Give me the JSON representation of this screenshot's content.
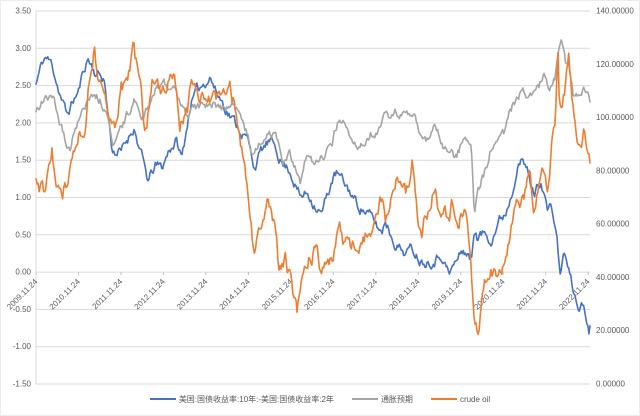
{
  "chart_data": {
    "type": "line",
    "title": "",
    "grid": true,
    "legend_position": "bottom",
    "x_axis": {
      "labels": [
        "2009.11.24",
        "2010.11.24",
        "2011.11.24",
        "2012.11.24",
        "2013.11.24",
        "2014.11.24",
        "2015.11.24",
        "2016.11.24",
        "2017.11.24",
        "2018.11.24",
        "2019.11.24",
        "2020.11.24",
        "2021.11.24",
        "2022.11.24"
      ],
      "rotation": -45,
      "start_year_fraction": 2009.897,
      "end_year_fraction": 2022.94
    },
    "left_axis": {
      "min": -1.5,
      "max": 3.5,
      "step": 0.5,
      "tick_labels": [
        "3.50",
        "3.00",
        "2.50",
        "2.00",
        "1.50",
        "1.00",
        "0.50",
        "0.00",
        "-0.50",
        "-1.00",
        "-1.50"
      ]
    },
    "right_axis": {
      "min": 0,
      "max": 140,
      "step": 20,
      "tick_labels": [
        "140.00000",
        "120.00000",
        "100.00000",
        "80.00000",
        "60.00000",
        "40.00000",
        "20.00000",
        "0.00000"
      ]
    },
    "colors": {
      "series_blue": "#4472C4",
      "series_gray": "#A5A5A5",
      "series_orange": "#ED7D31",
      "gridline": "#D9D9D9",
      "axis_text": "#595959"
    },
    "series": [
      {
        "name": "美国:国债收益率:10年:-美国:国债收益率:2年",
        "axis": "left",
        "color": "#4472C4",
        "jitter": 0.12,
        "points": [
          [
            2009.9,
            2.52
          ],
          [
            2010.04,
            2.8
          ],
          [
            2010.12,
            2.88
          ],
          [
            2010.28,
            2.78
          ],
          [
            2010.45,
            2.42
          ],
          [
            2010.62,
            2.1
          ],
          [
            2010.79,
            2.32
          ],
          [
            2010.9,
            2.42
          ],
          [
            2011.04,
            2.75
          ],
          [
            2011.12,
            2.87
          ],
          [
            2011.29,
            2.68
          ],
          [
            2011.5,
            2.6
          ],
          [
            2011.62,
            1.98
          ],
          [
            2011.7,
            1.63
          ],
          [
            2011.9,
            1.6
          ],
          [
            2012.04,
            1.77
          ],
          [
            2012.2,
            1.96
          ],
          [
            2012.37,
            1.58
          ],
          [
            2012.54,
            1.2
          ],
          [
            2012.7,
            1.42
          ],
          [
            2012.87,
            1.4
          ],
          [
            2013.04,
            1.66
          ],
          [
            2013.2,
            1.76
          ],
          [
            2013.33,
            1.52
          ],
          [
            2013.54,
            2.28
          ],
          [
            2013.7,
            2.42
          ],
          [
            2013.9,
            2.58
          ],
          [
            2014.0,
            2.64
          ],
          [
            2014.12,
            2.44
          ],
          [
            2014.29,
            2.28
          ],
          [
            2014.54,
            2.04
          ],
          [
            2014.7,
            1.92
          ],
          [
            2014.87,
            1.78
          ],
          [
            2015.04,
            1.42
          ],
          [
            2015.2,
            1.62
          ],
          [
            2015.37,
            1.73
          ],
          [
            2015.54,
            1.68
          ],
          [
            2015.7,
            1.46
          ],
          [
            2015.87,
            1.38
          ],
          [
            2015.98,
            1.22
          ],
          [
            2016.12,
            1.0
          ],
          [
            2016.29,
            1.06
          ],
          [
            2016.54,
            0.86
          ],
          [
            2016.62,
            0.78
          ],
          [
            2016.7,
            0.92
          ],
          [
            2016.87,
            1.24
          ],
          [
            2016.98,
            1.32
          ],
          [
            2017.12,
            1.2
          ],
          [
            2017.29,
            1.08
          ],
          [
            2017.45,
            0.92
          ],
          [
            2017.7,
            0.8
          ],
          [
            2017.9,
            0.63
          ],
          [
            2018.04,
            0.52
          ],
          [
            2018.12,
            0.72
          ],
          [
            2018.29,
            0.46
          ],
          [
            2018.54,
            0.28
          ],
          [
            2018.79,
            0.3
          ],
          [
            2018.98,
            0.16
          ],
          [
            2019.12,
            0.17
          ],
          [
            2019.29,
            0.19
          ],
          [
            2019.45,
            0.26
          ],
          [
            2019.62,
            -0.03
          ],
          [
            2019.79,
            0.14
          ],
          [
            2019.95,
            0.3
          ],
          [
            2020.04,
            0.26
          ],
          [
            2020.15,
            0.14
          ],
          [
            2020.22,
            0.62
          ],
          [
            2020.29,
            0.46
          ],
          [
            2020.45,
            0.52
          ],
          [
            2020.62,
            0.47
          ],
          [
            2020.79,
            0.68
          ],
          [
            2020.95,
            0.8
          ],
          [
            2021.12,
            1.12
          ],
          [
            2021.24,
            1.55
          ],
          [
            2021.33,
            1.5
          ],
          [
            2021.45,
            1.38
          ],
          [
            2021.54,
            1.18
          ],
          [
            2021.62,
            1.05
          ],
          [
            2021.79,
            1.25
          ],
          [
            2021.95,
            0.82
          ],
          [
            2022.04,
            0.85
          ],
          [
            2022.12,
            0.62
          ],
          [
            2022.2,
            0.22
          ],
          [
            2022.25,
            -0.06
          ],
          [
            2022.33,
            0.3
          ],
          [
            2022.42,
            0.06
          ],
          [
            2022.54,
            -0.24
          ],
          [
            2022.62,
            -0.41
          ],
          [
            2022.7,
            -0.46
          ],
          [
            2022.79,
            -0.44
          ],
          [
            2022.87,
            -0.68
          ],
          [
            2022.92,
            -0.8
          ],
          [
            2022.94,
            -0.72
          ]
        ]
      },
      {
        "name": "通胀预期",
        "axis": "left",
        "color": "#A5A5A5",
        "jitter": 0.11,
        "points": [
          [
            2009.9,
            2.15
          ],
          [
            2010.04,
            2.3
          ],
          [
            2010.28,
            2.4
          ],
          [
            2010.45,
            2.05
          ],
          [
            2010.62,
            1.72
          ],
          [
            2010.7,
            1.65
          ],
          [
            2010.9,
            2.08
          ],
          [
            2011.04,
            2.2
          ],
          [
            2011.28,
            2.46
          ],
          [
            2011.45,
            2.28
          ],
          [
            2011.58,
            2.12
          ],
          [
            2011.7,
            1.78
          ],
          [
            2011.79,
            1.82
          ],
          [
            2011.95,
            1.96
          ],
          [
            2012.2,
            2.32
          ],
          [
            2012.42,
            2.06
          ],
          [
            2012.7,
            2.42
          ],
          [
            2012.87,
            2.44
          ],
          [
            2013.12,
            2.54
          ],
          [
            2013.45,
            2.1
          ],
          [
            2013.62,
            2.16
          ],
          [
            2013.9,
            2.2
          ],
          [
            2014.04,
            2.26
          ],
          [
            2014.29,
            2.2
          ],
          [
            2014.54,
            2.26
          ],
          [
            2014.79,
            1.96
          ],
          [
            2014.95,
            1.7
          ],
          [
            2015.04,
            1.58
          ],
          [
            2015.2,
            1.76
          ],
          [
            2015.37,
            1.9
          ],
          [
            2015.54,
            1.8
          ],
          [
            2015.7,
            1.46
          ],
          [
            2015.87,
            1.56
          ],
          [
            2016.04,
            1.32
          ],
          [
            2016.12,
            1.18
          ],
          [
            2016.29,
            1.6
          ],
          [
            2016.45,
            1.46
          ],
          [
            2016.7,
            1.56
          ],
          [
            2016.87,
            1.76
          ],
          [
            2016.98,
            2.0
          ],
          [
            2017.04,
            2.05
          ],
          [
            2017.2,
            1.96
          ],
          [
            2017.45,
            1.7
          ],
          [
            2017.7,
            1.86
          ],
          [
            2017.95,
            1.9
          ],
          [
            2018.12,
            2.06
          ],
          [
            2018.37,
            2.16
          ],
          [
            2018.62,
            2.06
          ],
          [
            2018.79,
            2.16
          ],
          [
            2018.98,
            1.76
          ],
          [
            2019.04,
            1.7
          ],
          [
            2019.29,
            1.95
          ],
          [
            2019.45,
            1.72
          ],
          [
            2019.62,
            1.56
          ],
          [
            2019.79,
            1.52
          ],
          [
            2019.95,
            1.76
          ],
          [
            2020.04,
            1.8
          ],
          [
            2020.15,
            1.62
          ],
          [
            2020.22,
            0.68
          ],
          [
            2020.29,
            1.1
          ],
          [
            2020.45,
            1.32
          ],
          [
            2020.62,
            1.7
          ],
          [
            2020.79,
            1.76
          ],
          [
            2020.95,
            1.88
          ],
          [
            2021.04,
            2.08
          ],
          [
            2021.2,
            2.32
          ],
          [
            2021.37,
            2.52
          ],
          [
            2021.45,
            2.36
          ],
          [
            2021.62,
            2.36
          ],
          [
            2021.79,
            2.56
          ],
          [
            2021.87,
            2.72
          ],
          [
            2021.95,
            2.46
          ],
          [
            2022.04,
            2.52
          ],
          [
            2022.12,
            2.62
          ],
          [
            2022.2,
            2.96
          ],
          [
            2022.29,
            3.06
          ],
          [
            2022.37,
            2.76
          ],
          [
            2022.45,
            2.76
          ],
          [
            2022.54,
            2.36
          ],
          [
            2022.62,
            2.5
          ],
          [
            2022.7,
            2.42
          ],
          [
            2022.79,
            2.52
          ],
          [
            2022.87,
            2.36
          ],
          [
            2022.94,
            2.28
          ]
        ]
      },
      {
        "name": "crude oil",
        "axis": "right",
        "color": "#ED7D31",
        "jitter": 5.5,
        "points": [
          [
            2009.9,
            77
          ],
          [
            2009.98,
            73
          ],
          [
            2010.04,
            78
          ],
          [
            2010.12,
            72
          ],
          [
            2010.28,
            86
          ],
          [
            2010.37,
            70
          ],
          [
            2010.54,
            73
          ],
          [
            2010.62,
            76
          ],
          [
            2010.7,
            79
          ],
          [
            2010.87,
            86
          ],
          [
            2010.95,
            92
          ],
          [
            2011.04,
            97
          ],
          [
            2011.12,
            112
          ],
          [
            2011.28,
            126
          ],
          [
            2011.37,
            110
          ],
          [
            2011.45,
            114
          ],
          [
            2011.62,
            102
          ],
          [
            2011.76,
            100
          ],
          [
            2011.9,
            111
          ],
          [
            2012.04,
            111
          ],
          [
            2012.2,
            125
          ],
          [
            2012.37,
            108
          ],
          [
            2012.46,
            90
          ],
          [
            2012.62,
            113
          ],
          [
            2012.7,
            116
          ],
          [
            2012.87,
            109
          ],
          [
            2013.12,
            118
          ],
          [
            2013.29,
            98
          ],
          [
            2013.45,
            103
          ],
          [
            2013.62,
            115
          ],
          [
            2013.76,
            109
          ],
          [
            2013.9,
            108
          ],
          [
            2014.04,
            107
          ],
          [
            2014.2,
            108
          ],
          [
            2014.45,
            114
          ],
          [
            2014.62,
            102
          ],
          [
            2014.76,
            85
          ],
          [
            2014.87,
            70
          ],
          [
            2014.95,
            58
          ],
          [
            2015.04,
            47
          ],
          [
            2015.12,
            60
          ],
          [
            2015.2,
            54
          ],
          [
            2015.37,
            66
          ],
          [
            2015.54,
            56
          ],
          [
            2015.62,
            43
          ],
          [
            2015.76,
            49
          ],
          [
            2015.92,
            37
          ],
          [
            2016.04,
            28
          ],
          [
            2016.12,
            33
          ],
          [
            2016.29,
            44
          ],
          [
            2016.45,
            51
          ],
          [
            2016.6,
            43
          ],
          [
            2016.76,
            51
          ],
          [
            2016.87,
            45
          ],
          [
            2016.95,
            55
          ],
          [
            2017.04,
            56
          ],
          [
            2017.2,
            51
          ],
          [
            2017.37,
            52
          ],
          [
            2017.46,
            45
          ],
          [
            2017.62,
            52
          ],
          [
            2017.76,
            58
          ],
          [
            2017.95,
            66
          ],
          [
            2018.06,
            70
          ],
          [
            2018.12,
            63
          ],
          [
            2018.37,
            79
          ],
          [
            2018.54,
            74
          ],
          [
            2018.62,
            72
          ],
          [
            2018.76,
            86
          ],
          [
            2018.87,
            64
          ],
          [
            2018.98,
            52
          ],
          [
            2019.04,
            60
          ],
          [
            2019.29,
            74
          ],
          [
            2019.45,
            61
          ],
          [
            2019.54,
            65
          ],
          [
            2019.62,
            59
          ],
          [
            2019.7,
            67
          ],
          [
            2019.79,
            59
          ],
          [
            2019.95,
            66
          ],
          [
            2020.02,
            69
          ],
          [
            2020.12,
            55
          ],
          [
            2020.2,
            30
          ],
          [
            2020.3,
            20
          ],
          [
            2020.37,
            30
          ],
          [
            2020.45,
            41
          ],
          [
            2020.62,
            45
          ],
          [
            2020.76,
            40
          ],
          [
            2020.87,
            44
          ],
          [
            2020.95,
            50
          ],
          [
            2021.04,
            55
          ],
          [
            2021.2,
            68
          ],
          [
            2021.28,
            63
          ],
          [
            2021.45,
            73
          ],
          [
            2021.54,
            75
          ],
          [
            2021.62,
            66
          ],
          [
            2021.79,
            84
          ],
          [
            2021.87,
            82
          ],
          [
            2021.92,
            70
          ],
          [
            2022.04,
            88
          ],
          [
            2022.12,
            97
          ],
          [
            2022.18,
            128
          ],
          [
            2022.22,
            104
          ],
          [
            2022.29,
            106
          ],
          [
            2022.37,
            113
          ],
          [
            2022.44,
            121
          ],
          [
            2022.54,
            104
          ],
          [
            2022.62,
            94
          ],
          [
            2022.73,
            86
          ],
          [
            2022.79,
            95
          ],
          [
            2022.87,
            90
          ],
          [
            2022.94,
            83
          ]
        ]
      }
    ]
  }
}
